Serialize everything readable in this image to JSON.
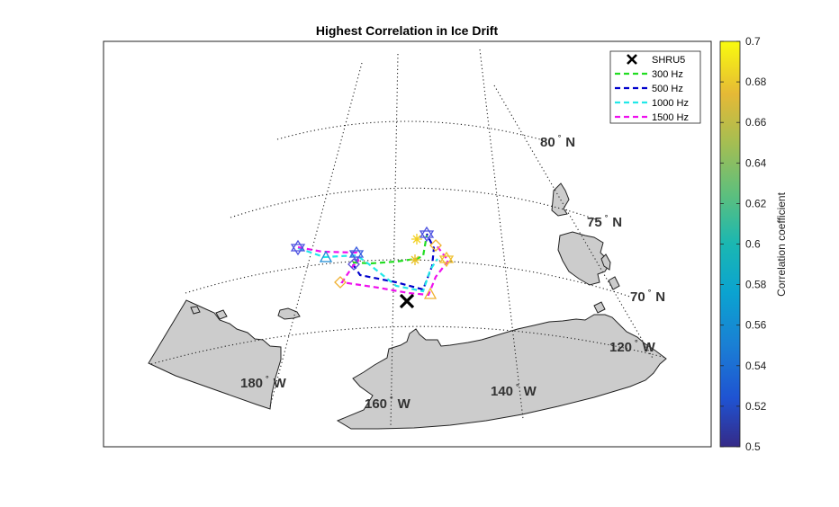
{
  "title": "Highest Correlation in Ice Drift",
  "lat_labels": [
    {
      "id": "lat-80",
      "num": "80",
      "deg": "°",
      "dir": "N"
    },
    {
      "id": "lat-75",
      "num": "75",
      "deg": "°",
      "dir": "N"
    },
    {
      "id": "lat-70",
      "num": "70",
      "deg": "°",
      "dir": "N"
    }
  ],
  "lon_labels": [
    {
      "id": "lon-180",
      "num": "180",
      "deg": "°",
      "dir": "W"
    },
    {
      "id": "lon-160",
      "num": "160",
      "deg": "°",
      "dir": "W"
    },
    {
      "id": "lon-140",
      "num": "140",
      "deg": "°",
      "dir": "W"
    },
    {
      "id": "lon-120",
      "num": "120",
      "deg": "°",
      "dir": "W"
    }
  ],
  "legend": [
    {
      "label": "SHRU5",
      "kind": "marker",
      "color": "#000000"
    },
    {
      "label": "300 Hz",
      "kind": "line",
      "color": "#22dd22"
    },
    {
      "label": "500 Hz",
      "kind": "line",
      "color": "#0000cc"
    },
    {
      "label": "1000 Hz",
      "kind": "line",
      "color": "#22e8e8"
    },
    {
      "label": "1500 Hz",
      "kind": "line",
      "color": "#ee11ee"
    }
  ],
  "colorbar": {
    "label": "Correlation coefficient",
    "ticks": [
      "0.7",
      "0.68",
      "0.66",
      "0.64",
      "0.62",
      "0.6",
      "0.58",
      "0.56",
      "0.54",
      "0.52",
      "0.5"
    ],
    "min": 0.5,
    "max": 0.7
  },
  "colors": {
    "land": "#cccccc",
    "grid": "#222222"
  }
}
